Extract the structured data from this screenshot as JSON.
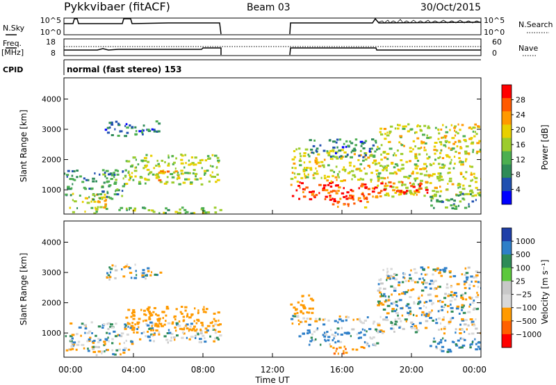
{
  "header": {
    "station": "Pykkvibaer (fitACF)",
    "beam": "Beam 03",
    "date": "30/Oct/2015"
  },
  "colors": {
    "power": [
      "#0000ff",
      "#1f4fb0",
      "#2e8b57",
      "#4caf50",
      "#9ccc2c",
      "#e8d000",
      "#ff9900",
      "#ff5a00",
      "#ff0000"
    ],
    "velocity": [
      "#1f3fa8",
      "#2e7fc8",
      "#2e8b57",
      "#5cc83c",
      "#c8c8c8",
      "#d8d8d8",
      "#ff9a00",
      "#ff6000",
      "#ff0000"
    ]
  },
  "panels": {
    "nsky": {
      "label": "N.Sky",
      "right_label": "N.Search",
      "left_ticks": [
        "10^5",
        "10^0"
      ],
      "right_ticks": [
        "10^5",
        "10^0"
      ]
    },
    "freq": {
      "label_top": "Freq.",
      "label_bottom": "[MHz]",
      "right_label": "Nave",
      "left_ticks": [
        "18",
        "8"
      ],
      "right_ticks": [
        "60",
        "0"
      ]
    },
    "cpid": {
      "label": "CPID",
      "text": "normal (fast stereo) 153"
    }
  },
  "chart_data": [
    {
      "type": "heatmap",
      "name_printed": "",
      "ylabel": "Slant Range [km]",
      "ylim": [
        200,
        4700
      ],
      "yticks": [
        "1000",
        "2000",
        "3000",
        "4000"
      ],
      "x_range_hours": [
        0,
        24
      ],
      "data_gap_hours": [
        9,
        13
      ],
      "colorbar": {
        "label": "Power [dB]",
        "ticks": [
          "4",
          "8",
          "12",
          "16",
          "20",
          "24",
          "28"
        ],
        "range": [
          0,
          32
        ]
      },
      "series": [
        {
          "x_hours": [
            0.3,
            2.5
          ],
          "range_km": [
            400,
            900
          ],
          "value": 20
        },
        {
          "x_hours": [
            0,
            9
          ],
          "range_km": [
            250,
            450
          ],
          "value": 14
        },
        {
          "x_hours": [
            0,
            3.5
          ],
          "range_km": [
            700,
            1700
          ],
          "value": 10
        },
        {
          "x_hours": [
            2.3,
            5.5
          ],
          "range_km": [
            2800,
            3300
          ],
          "value": 8
        },
        {
          "x_hours": [
            3.5,
            8.9
          ],
          "range_km": [
            1200,
            2200
          ],
          "value": 16
        },
        {
          "x_hours": [
            5.2,
            6.8
          ],
          "range_km": [
            1300,
            1700
          ],
          "value": 22
        },
        {
          "x_hours": [
            13,
            18
          ],
          "range_km": [
            700,
            1300
          ],
          "value": 28
        },
        {
          "x_hours": [
            13,
            18
          ],
          "range_km": [
            1300,
            2400
          ],
          "value": 18
        },
        {
          "x_hours": [
            14,
            18
          ],
          "range_km": [
            2100,
            2700
          ],
          "value": 8
        },
        {
          "x_hours": [
            15,
            17.5
          ],
          "range_km": [
            450,
            800
          ],
          "value": 26
        },
        {
          "x_hours": [
            18,
            24
          ],
          "range_km": [
            800,
            3200
          ],
          "value": 18
        },
        {
          "x_hours": [
            18,
            21
          ],
          "range_km": [
            900,
            1300
          ],
          "value": 28
        },
        {
          "x_hours": [
            21,
            24
          ],
          "range_km": [
            400,
            900
          ],
          "value": 10
        }
      ]
    },
    {
      "type": "heatmap",
      "name_printed": "",
      "ylabel": "Slant Range [km]",
      "ylim": [
        200,
        4700
      ],
      "yticks": [
        "1000",
        "2000",
        "3000",
        "4000"
      ],
      "x_range_hours": [
        0,
        24
      ],
      "data_gap_hours": [
        9,
        13
      ],
      "colorbar": {
        "label": "Velocity [m s⁻¹]",
        "ticks": [
          "1000",
          "500",
          "100",
          "25",
          "−25",
          "−100",
          "−500",
          "−1000"
        ]
      },
      "series": [
        {
          "x_hours": [
            0,
            4
          ],
          "range_km": [
            300,
            700
          ],
          "value": -50
        },
        {
          "x_hours": [
            0,
            9
          ],
          "range_km": [
            700,
            1400
          ],
          "value": 0
        },
        {
          "x_hours": [
            2.3,
            5.5
          ],
          "range_km": [
            2800,
            3300
          ],
          "value": 0
        },
        {
          "x_hours": [
            3.5,
            8.9
          ],
          "range_km": [
            1100,
            1900
          ],
          "value": -300
        },
        {
          "x_hours": [
            13,
            18
          ],
          "range_km": [
            1300,
            1600
          ],
          "value": 0
        },
        {
          "x_hours": [
            13,
            14.3
          ],
          "range_km": [
            1600,
            2300
          ],
          "value": -300
        },
        {
          "x_hours": [
            13.5,
            18
          ],
          "range_km": [
            600,
            1200
          ],
          "value": 100
        },
        {
          "x_hours": [
            15,
            17.5
          ],
          "range_km": [
            350,
            600
          ],
          "value": -500
        },
        {
          "x_hours": [
            18,
            24
          ],
          "range_km": [
            1000,
            3200
          ],
          "value": 0
        },
        {
          "x_hours": [
            21,
            24
          ],
          "range_km": [
            400,
            900
          ],
          "value": 200
        }
      ]
    }
  ],
  "x_axis": {
    "ticks": [
      "00:00",
      "04:00",
      "08:00",
      "12:00",
      "16:00",
      "20:00",
      "00:00"
    ],
    "label": "Time UT"
  }
}
